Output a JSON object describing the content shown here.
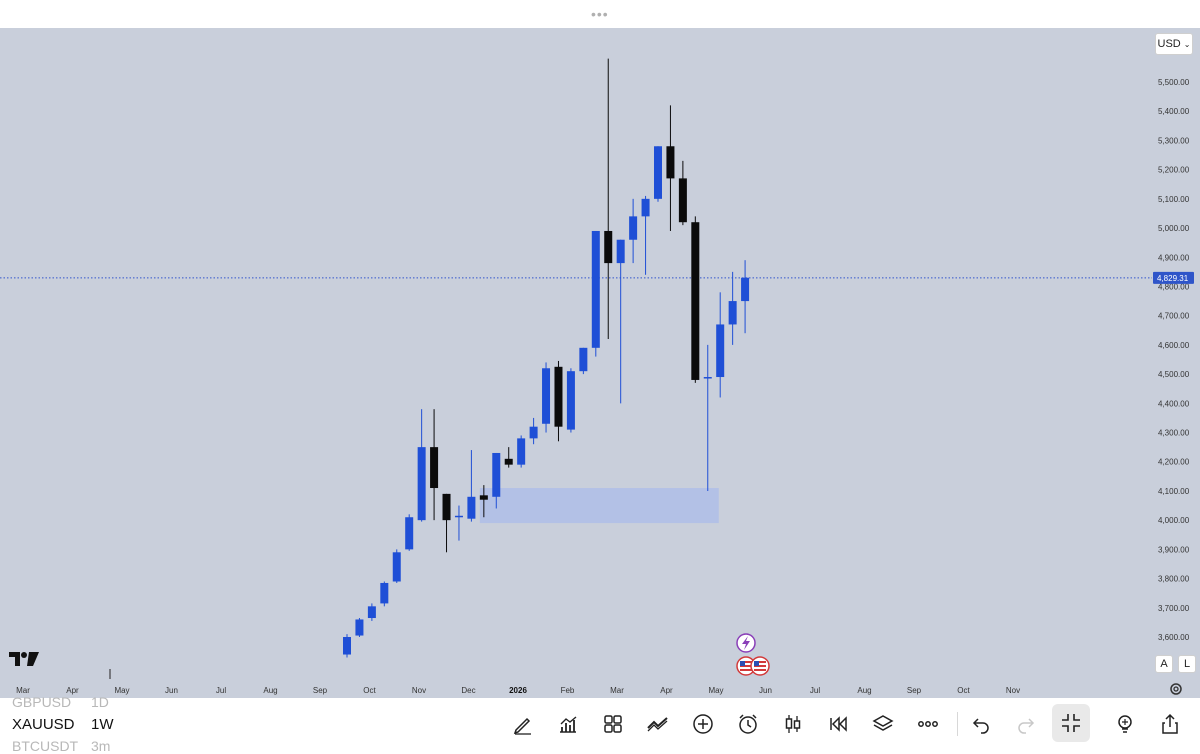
{
  "toolbar_top": {
    "handle_dots": "•••"
  },
  "currency": {
    "label": "USD"
  },
  "scale_buttons": {
    "auto": "A",
    "log": "L"
  },
  "price_axis": {
    "ticks": [
      "5,500.00",
      "5,400.00",
      "5,300.00",
      "5,200.00",
      "5,100.00",
      "5,000.00",
      "4,900.00",
      "4,800.00",
      "4,700.00",
      "4,600.00",
      "4,500.00",
      "4,400.00",
      "4,300.00",
      "4,200.00",
      "4,100.00",
      "4,000.00",
      "3,900.00",
      "3,800.00",
      "3,700.00",
      "3,600.00"
    ],
    "current_price": "4,829.31"
  },
  "time_axis": {
    "ticks": [
      "Mar",
      "Apr",
      "May",
      "Jun",
      "Jul",
      "Aug",
      "Sep",
      "Oct",
      "Nov",
      "Dec",
      "2026",
      "Feb",
      "Mar",
      "Apr",
      "May",
      "Jun",
      "Jul",
      "Aug",
      "Sep",
      "Oct",
      "Nov"
    ]
  },
  "chart_data": {
    "type": "candlestick",
    "symbol": "XAUUSD",
    "interval": "1W",
    "ylim": [
      3550,
      5580
    ],
    "colors": {
      "up": "#1f4fd6",
      "down": "#0b0b0b",
      "zone": "#b3c1e6",
      "price_line": "#3355cc"
    },
    "candles": [
      {
        "o": 3540,
        "h": 3610,
        "l": 3530,
        "c": 3600
      },
      {
        "o": 3605,
        "h": 3665,
        "l": 3600,
        "c": 3660
      },
      {
        "o": 3665,
        "h": 3715,
        "l": 3655,
        "c": 3705
      },
      {
        "o": 3715,
        "h": 3790,
        "l": 3705,
        "c": 3785
      },
      {
        "o": 3790,
        "h": 3900,
        "l": 3785,
        "c": 3890
      },
      {
        "o": 3900,
        "h": 4020,
        "l": 3895,
        "c": 4010
      },
      {
        "o": 4000,
        "h": 4380,
        "l": 3995,
        "c": 4250
      },
      {
        "o": 4250,
        "h": 4380,
        "l": 4000,
        "c": 4110
      },
      {
        "o": 4090,
        "h": 4090,
        "l": 3890,
        "c": 4000
      },
      {
        "o": 4010,
        "h": 4050,
        "l": 3930,
        "c": 4015
      },
      {
        "o": 4005,
        "h": 4240,
        "l": 3995,
        "c": 4080
      },
      {
        "o": 4085,
        "h": 4120,
        "l": 4010,
        "c": 4070
      },
      {
        "o": 4080,
        "h": 4230,
        "l": 4040,
        "c": 4230
      },
      {
        "o": 4210,
        "h": 4250,
        "l": 4180,
        "c": 4190
      },
      {
        "o": 4190,
        "h": 4290,
        "l": 4180,
        "c": 4280
      },
      {
        "o": 4280,
        "h": 4350,
        "l": 4260,
        "c": 4320
      },
      {
        "o": 4330,
        "h": 4540,
        "l": 4300,
        "c": 4520
      },
      {
        "o": 4525,
        "h": 4545,
        "l": 4270,
        "c": 4320
      },
      {
        "o": 4310,
        "h": 4520,
        "l": 4300,
        "c": 4510
      },
      {
        "o": 4510,
        "h": 4590,
        "l": 4500,
        "c": 4590
      },
      {
        "o": 4590,
        "h": 4990,
        "l": 4560,
        "c": 4990
      },
      {
        "o": 4990,
        "h": 5580,
        "l": 4620,
        "c": 4880
      },
      {
        "o": 4880,
        "h": 4960,
        "l": 4400,
        "c": 4960
      },
      {
        "o": 4960,
        "h": 5100,
        "l": 4880,
        "c": 5040
      },
      {
        "o": 5040,
        "h": 5110,
        "l": 4840,
        "c": 5100
      },
      {
        "o": 5100,
        "h": 5280,
        "l": 5090,
        "c": 5280
      },
      {
        "o": 5280,
        "h": 5420,
        "l": 4990,
        "c": 5170
      },
      {
        "o": 5170,
        "h": 5230,
        "l": 5010,
        "c": 5020
      },
      {
        "o": 5020,
        "h": 5040,
        "l": 4470,
        "c": 4480
      },
      {
        "o": 4490,
        "h": 4600,
        "l": 4100,
        "c": 4490
      },
      {
        "o": 4490,
        "h": 4780,
        "l": 4420,
        "c": 4670
      },
      {
        "o": 4670,
        "h": 4850,
        "l": 4600,
        "c": 4750
      },
      {
        "o": 4750,
        "h": 4890,
        "l": 4640,
        "c": 4830
      }
    ],
    "zone": {
      "from_candle": 11,
      "to_candle": 29,
      "low": 3990,
      "high": 4110
    },
    "axis_side": "right"
  },
  "bottom": {
    "symbols": [
      {
        "name": "GBPUSD",
        "tf": "1D"
      },
      {
        "name": "XAUUSD",
        "tf": "1W"
      },
      {
        "name": "BTCUSDT",
        "tf": "3m"
      }
    ]
  }
}
